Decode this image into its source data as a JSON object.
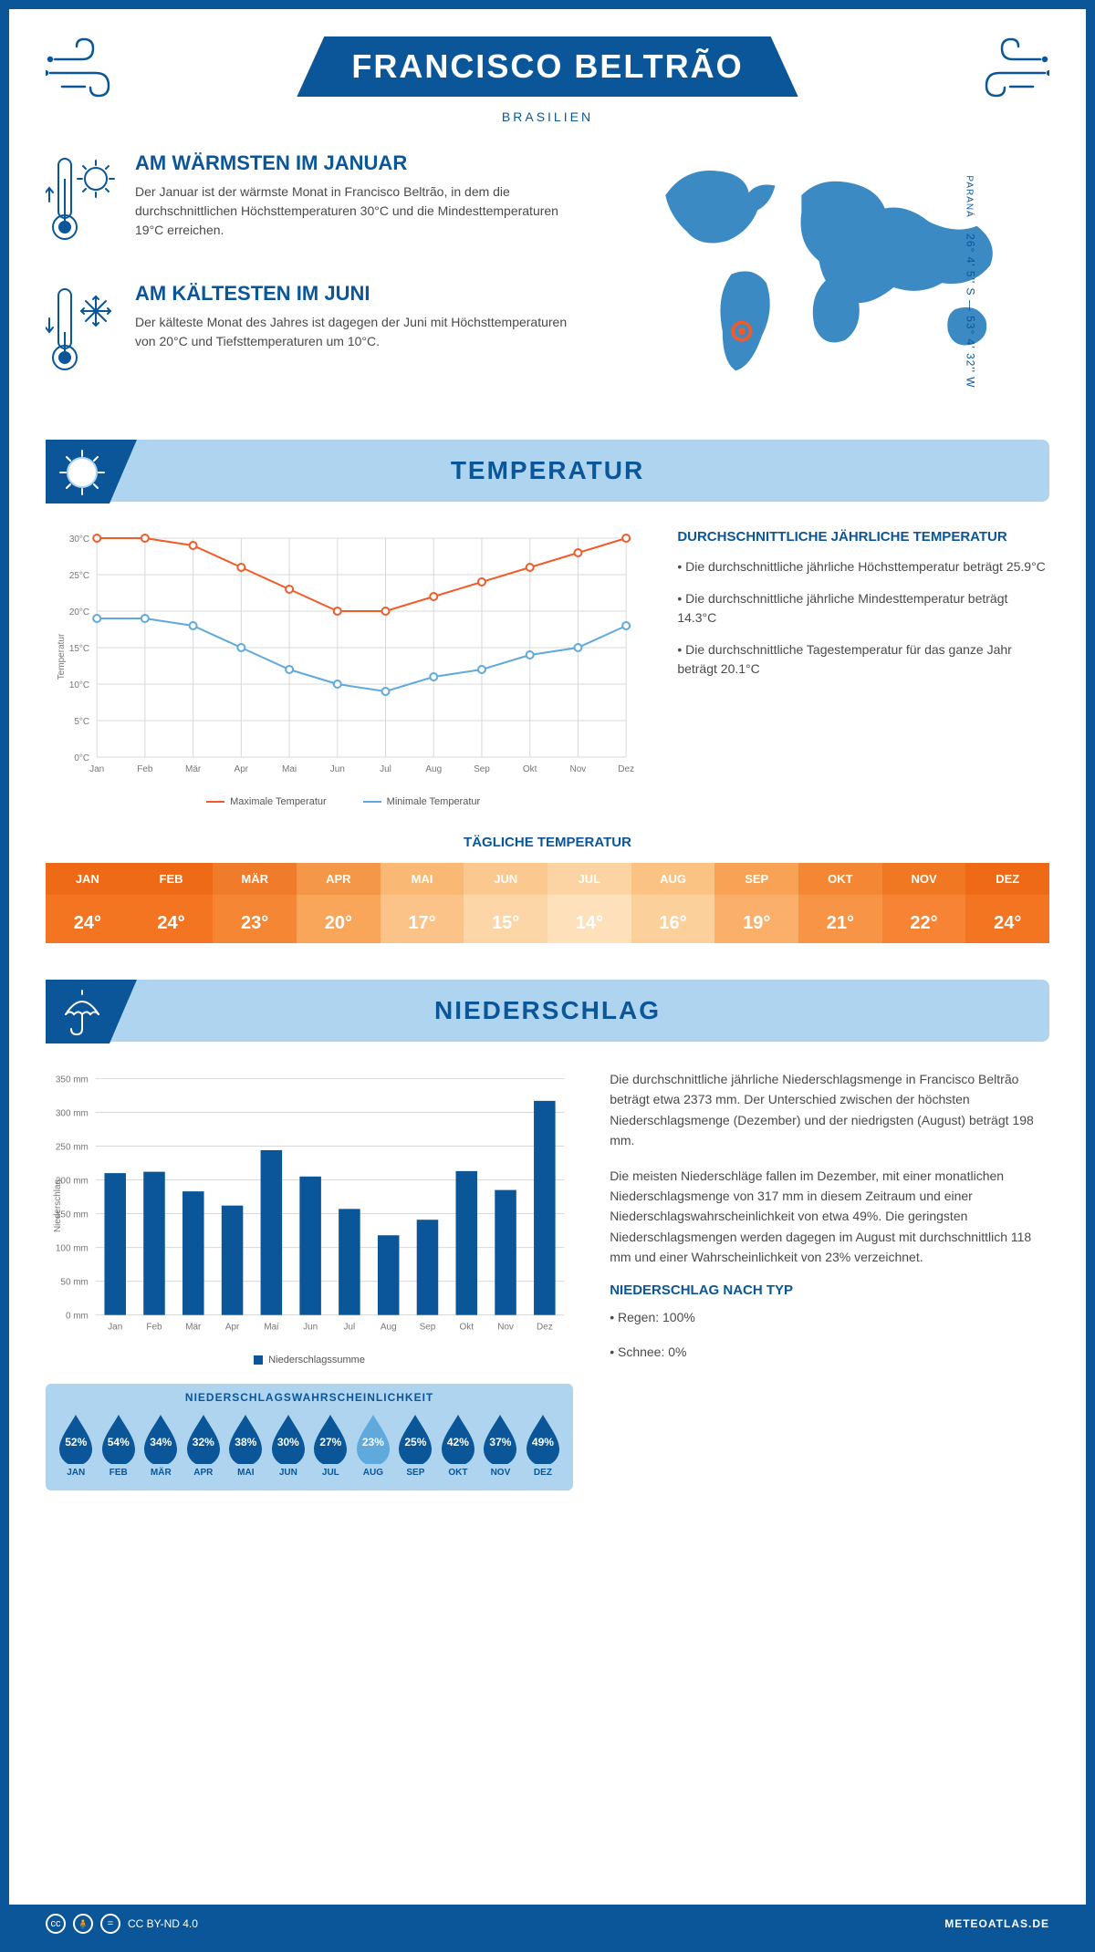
{
  "header": {
    "title": "FRANCISCO BELTRÃO",
    "subtitle": "BRASILIEN",
    "coords": "26° 4' 5'' S — 53° 4' 32'' W",
    "region": "PARANÁ"
  },
  "colors": {
    "primary": "#0a5698",
    "light": "#aed4ef",
    "max_line": "#f15b29",
    "min_line": "#5fa9dd",
    "grid": "#d0d0d0",
    "text": "#4a4a4a"
  },
  "warmest": {
    "title": "AM WÄRMSTEN IM JANUAR",
    "text": "Der Januar ist der wärmste Monat in Francisco Beltrão, in dem die durchschnittlichen Höchsttemperaturen 30°C und die Mindesttemperaturen 19°C erreichen."
  },
  "coldest": {
    "title": "AM KÄLTESTEN IM JUNI",
    "text": "Der kälteste Monat des Jahres ist dagegen der Juni mit Höchsttemperaturen von 20°C und Tiefsttemperaturen um 10°C."
  },
  "temperature": {
    "section_title": "TEMPERATUR",
    "chart": {
      "type": "line",
      "months": [
        "Jan",
        "Feb",
        "Mär",
        "Apr",
        "Mai",
        "Jun",
        "Jul",
        "Aug",
        "Sep",
        "Okt",
        "Nov",
        "Dez"
      ],
      "max": [
        30,
        30,
        29,
        26,
        23,
        20,
        20,
        22,
        24,
        26,
        28,
        30
      ],
      "min": [
        19,
        19,
        18,
        15,
        12,
        10,
        9,
        11,
        12,
        14,
        15,
        18
      ],
      "max_color": "#f15b29",
      "min_color": "#5fa9dd",
      "ylim": [
        0,
        30
      ],
      "ytick_step": 5,
      "ylabel": "Temperatur",
      "legend_max": "Maximale Temperatur",
      "legend_min": "Minimale Temperatur",
      "grid_color": "#d8d8d8",
      "line_width": 2,
      "marker": "circle",
      "marker_size": 4
    },
    "avg": {
      "title": "DURCHSCHNITTLICHE JÄHRLICHE TEMPERATUR",
      "p1": "• Die durchschnittliche jährliche Höchsttemperatur beträgt 25.9°C",
      "p2": "• Die durchschnittliche jährliche Mindesttemperatur beträgt 14.3°C",
      "p3": "• Die durchschnittliche Tagestemperatur für das ganze Jahr beträgt 20.1°C"
    },
    "daily": {
      "title": "TÄGLICHE TEMPERATUR",
      "months": [
        "JAN",
        "FEB",
        "MÄR",
        "APR",
        "MAI",
        "JUN",
        "JUL",
        "AUG",
        "SEP",
        "OKT",
        "NOV",
        "DEZ"
      ],
      "values": [
        "24°",
        "24°",
        "23°",
        "20°",
        "17°",
        "15°",
        "14°",
        "16°",
        "19°",
        "21°",
        "22°",
        "24°"
      ],
      "cell_colors": [
        "#f47521",
        "#f47521",
        "#f58634",
        "#f9a55a",
        "#fcc389",
        "#fdd6a8",
        "#fee0bb",
        "#fcd09b",
        "#fab06a",
        "#f79445",
        "#f68434",
        "#f47521"
      ],
      "header_colors": [
        "#ee6a17",
        "#ee6a17",
        "#f07b2b",
        "#f59748",
        "#f9b873",
        "#fbc98f",
        "#fcd4a3",
        "#fac383",
        "#f7a254",
        "#f38734",
        "#f17823",
        "#ee6a17"
      ]
    }
  },
  "precipitation": {
    "section_title": "NIEDERSCHLAG",
    "chart": {
      "type": "bar",
      "months": [
        "Jan",
        "Feb",
        "Mär",
        "Apr",
        "Mai",
        "Jun",
        "Jul",
        "Aug",
        "Sep",
        "Okt",
        "Nov",
        "Dez"
      ],
      "values": [
        210,
        212,
        183,
        162,
        244,
        205,
        157,
        118,
        141,
        213,
        185,
        317
      ],
      "bar_color": "#0a5698",
      "ylim": [
        0,
        350
      ],
      "ytick_step": 50,
      "ylabel": "Niederschlag",
      "legend": "Niederschlagssumme",
      "grid_color": "#d8d8d8",
      "bar_width": 0.55
    },
    "text1": "Die durchschnittliche jährliche Niederschlagsmenge in Francisco Beltrão beträgt etwa 2373 mm. Der Unterschied zwischen der höchsten Niederschlagsmenge (Dezember) und der niedrigsten (August) beträgt 198 mm.",
    "text2": "Die meisten Niederschläge fallen im Dezember, mit einer monatlichen Niederschlagsmenge von 317 mm in diesem Zeitraum und einer Niederschlagswahrscheinlichkeit von etwa 49%. Die geringsten Niederschlagsmengen werden dagegen im August mit durchschnittlich 118 mm und einer Wahrscheinlichkeit von 23% verzeichnet.",
    "bytype_title": "NIEDERSCHLAG NACH TYP",
    "bytype_rain": "• Regen: 100%",
    "bytype_snow": "• Schnee: 0%",
    "probability": {
      "title": "NIEDERSCHLAGSWAHRSCHEINLICHKEIT",
      "months": [
        "JAN",
        "FEB",
        "MÄR",
        "APR",
        "MAI",
        "JUN",
        "JUL",
        "AUG",
        "SEP",
        "OKT",
        "NOV",
        "DEZ"
      ],
      "values": [
        52,
        54,
        34,
        32,
        38,
        30,
        27,
        23,
        25,
        42,
        37,
        49
      ],
      "drop_dark": "#0a5698",
      "drop_light": "#5fa9dd",
      "min_index": 7
    }
  },
  "footer": {
    "license": "CC BY-ND 4.0",
    "site": "METEOATLAS.DE"
  }
}
